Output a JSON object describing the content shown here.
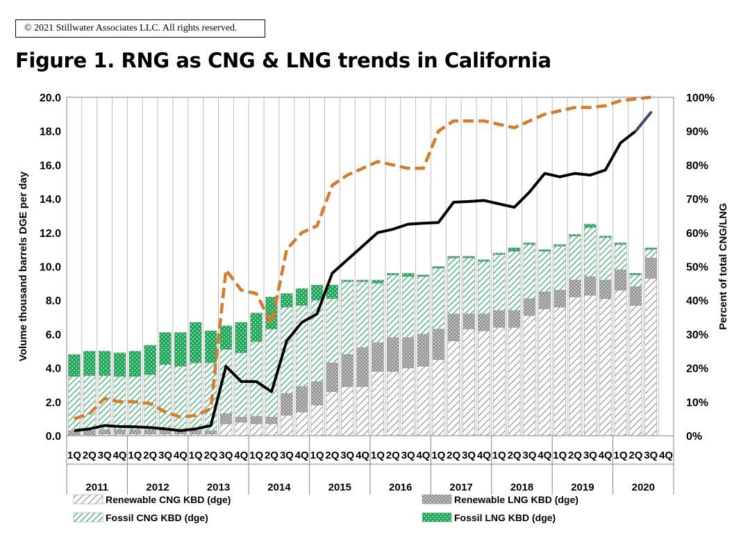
{
  "copyright": "© 2021 Stillwater Associates LLC.  All rights reserved.",
  "title": "Figure 1. RNG as CNG & LNG trends in California",
  "chart_data": {
    "type": "bar",
    "stacked": true,
    "ylabel": "Volume thousand barrels DGE per day",
    "y2label": "Percent of total CNG/LNG",
    "ylim": [
      0,
      20
    ],
    "y_ticks": [
      "0.0",
      "2.0",
      "4.0",
      "6.0",
      "8.0",
      "10.0",
      "12.0",
      "14.0",
      "16.0",
      "18.0",
      "20.0"
    ],
    "y2lim": [
      0,
      100
    ],
    "y2_ticks": [
      "0%",
      "10%",
      "20%",
      "30%",
      "40%",
      "50%",
      "60%",
      "70%",
      "80%",
      "90%",
      "100%"
    ],
    "quarter_labels": [
      "1Q",
      "2Q",
      "3Q",
      "4Q"
    ],
    "years": [
      "2011",
      "2012",
      "2013",
      "2014",
      "2015",
      "2016",
      "2017",
      "2018",
      "2019",
      "2020"
    ],
    "series": [
      {
        "name": "Renewable CNG KBD (dge)",
        "pattern": "diag-gray",
        "values": [
          0.05,
          0.05,
          0.1,
          0.1,
          0.1,
          0.1,
          0.1,
          0.1,
          0.1,
          0.1,
          0.7,
          0.8,
          0.7,
          0.7,
          1.2,
          1.4,
          1.8,
          2.6,
          2.9,
          2.9,
          3.8,
          3.8,
          4.0,
          4.1,
          4.5,
          5.6,
          6.3,
          6.2,
          6.4,
          6.4,
          7.1,
          7.5,
          7.6,
          8.2,
          8.3,
          8.1,
          8.6,
          7.7,
          9.3,
          null
        ]
      },
      {
        "name": "Renewable LNG KBD (dge)",
        "pattern": "cross-gray",
        "values": [
          0.25,
          0.25,
          0.25,
          0.25,
          0.25,
          0.25,
          0.25,
          0.2,
          0.2,
          0.2,
          0.6,
          0.3,
          0.45,
          0.4,
          1.3,
          1.5,
          1.4,
          1.7,
          1.9,
          2.3,
          1.7,
          2.0,
          1.8,
          1.9,
          1.8,
          1.6,
          0.9,
          1.0,
          1.0,
          1.0,
          1.0,
          1.0,
          1.0,
          1.0,
          1.1,
          1.1,
          1.2,
          1.1,
          1.2,
          null
        ]
      },
      {
        "name": "Fossil CNG KBD (dge)",
        "pattern": "diag-green",
        "values": [
          3.2,
          3.25,
          3.2,
          3.15,
          3.15,
          3.25,
          3.85,
          3.8,
          4.0,
          4.0,
          3.8,
          3.8,
          4.4,
          5.2,
          5.1,
          4.8,
          4.8,
          3.8,
          4.3,
          3.9,
          3.5,
          3.7,
          3.6,
          3.4,
          3.6,
          3.3,
          3.3,
          3.1,
          3.3,
          3.5,
          3.2,
          2.4,
          2.6,
          2.6,
          2.9,
          2.5,
          1.5,
          0.7,
          0.5,
          null
        ]
      },
      {
        "name": "Fossil LNG KBD (dge)",
        "pattern": "dots-green",
        "values": [
          1.3,
          1.45,
          1.45,
          1.4,
          1.5,
          1.75,
          1.9,
          2.0,
          2.4,
          1.9,
          1.4,
          1.8,
          1.7,
          1.9,
          0.8,
          1.0,
          0.9,
          0.8,
          0.1,
          0.1,
          0.2,
          0.1,
          0.2,
          0.1,
          0.1,
          0.1,
          0.1,
          0.1,
          0.1,
          0.2,
          0.1,
          0.1,
          0.1,
          0.1,
          0.2,
          0.1,
          0.1,
          0.1,
          0.1,
          null
        ]
      }
    ],
    "line_series": [
      {
        "name": "",
        "axis": "right",
        "style": "dashed-orange",
        "values": [
          5,
          6.5,
          11,
          10,
          10,
          9.5,
          7,
          5.5,
          6,
          8,
          49,
          43,
          42,
          33,
          55,
          60,
          62,
          74,
          77,
          79,
          81,
          80,
          79,
          79,
          90,
          93,
          93,
          93,
          92,
          91,
          93,
          95,
          96,
          97,
          97,
          97.5,
          99,
          99.5,
          100,
          null
        ]
      },
      {
        "name": "",
        "axis": "right",
        "style": "solid-black",
        "values": [
          1.5,
          2,
          3,
          2.7,
          2.6,
          2.4,
          2,
          1.5,
          2,
          3,
          20.5,
          16,
          16,
          13,
          28,
          33.5,
          36,
          48,
          52,
          56,
          60,
          61,
          62.5,
          62.8,
          63,
          69,
          69.2,
          69.5,
          68.5,
          67.5,
          72,
          77.5,
          76.5,
          77.5,
          77,
          78.5,
          86.5,
          90,
          95.5,
          null
        ]
      }
    ],
    "legend": [
      {
        "label": "Renewable CNG KBD (dge)",
        "pattern": "diag-gray"
      },
      {
        "label": "Renewable LNG KBD (dge)",
        "pattern": "cross-gray"
      },
      {
        "label": "Fossil CNG KBD (dge)",
        "pattern": "diag-green"
      },
      {
        "label": "Fossil LNG KBD (dge)",
        "pattern": "dots-green"
      }
    ],
    "legend_position": "bottom",
    "grid": "vertical",
    "colors": {
      "fossil_green": "#27ae60",
      "renewable_gray": "#8a8a8a",
      "dashed_line": "#d87a2a",
      "solid_line": "#000000",
      "last_segment": "#3a4d6a"
    }
  }
}
